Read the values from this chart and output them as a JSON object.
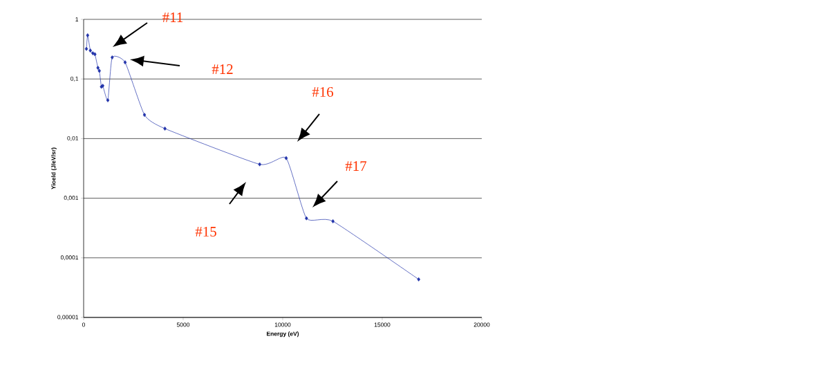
{
  "chart_data": {
    "type": "line",
    "xlabel": "Energy (eV)",
    "ylabel": "Yioeld (J/eV/sr)",
    "x": [
      139,
      200,
      336,
      462,
      566,
      718,
      788,
      892,
      961,
      1215,
      1434,
      2083,
      3056,
      4083,
      8843,
      10174,
      11193,
      12524,
      16830
    ],
    "series": [
      {
        "color": "#2233aa",
        "values": [
          0.32,
          0.54,
          0.3,
          0.27,
          0.26,
          0.154,
          0.137,
          0.074,
          0.077,
          0.044,
          0.23,
          0.19,
          0.025,
          0.0147,
          0.0037,
          0.0047,
          0.00046,
          0.00041,
          4.35e-05
        ]
      }
    ],
    "xlim": [
      0,
      20000
    ],
    "xticks": [
      0,
      5000,
      10000,
      15000,
      20000
    ],
    "ylim": [
      1e-05,
      1
    ],
    "yticks": [
      {
        "value": 1e-05,
        "label": "0,00001"
      },
      {
        "value": 0.0001,
        "label": "0,0001"
      },
      {
        "value": 0.001,
        "label": "0,001"
      },
      {
        "value": 0.01,
        "label": "0,01"
      },
      {
        "value": 0.1,
        "label": "0,1"
      },
      {
        "value": 1,
        "label": "1"
      }
    ],
    "log": "y",
    "grid": "y",
    "marker": "diamond",
    "line_style": "solid",
    "annotations": [
      "#11",
      "#12",
      "#16",
      "#17",
      "#15"
    ]
  }
}
